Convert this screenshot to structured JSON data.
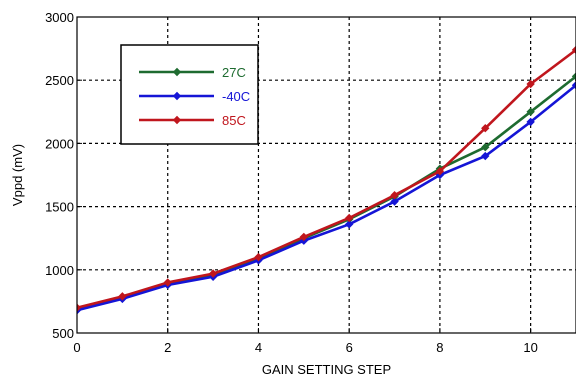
{
  "chart_data": {
    "type": "line",
    "title": "",
    "xlabel": "GAIN SETTING STEP",
    "ylabel": "Vppd (mV)",
    "xlim": [
      0,
      11
    ],
    "ylim": [
      500,
      3000
    ],
    "x_ticks": [
      0,
      2,
      4,
      6,
      8,
      10
    ],
    "y_ticks": [
      500,
      1000,
      1500,
      2000,
      2500,
      3000
    ],
    "grid": true,
    "legend_position": "top-left",
    "x": [
      0,
      1,
      2,
      3,
      4,
      5,
      6,
      7,
      8,
      9,
      10,
      11
    ],
    "series": [
      {
        "name": "27C",
        "color": "#1e6b30",
        "values": [
          690,
          780,
          890,
          960,
          1090,
          1250,
          1400,
          1580,
          1800,
          1970,
          2250,
          2530
        ]
      },
      {
        "name": "-40C",
        "color": "#1515d6",
        "values": [
          680,
          770,
          880,
          945,
          1075,
          1230,
          1360,
          1540,
          1750,
          1900,
          2170,
          2460
        ]
      },
      {
        "name": "85C",
        "color": "#c0161d",
        "values": [
          700,
          790,
          900,
          970,
          1100,
          1260,
          1410,
          1590,
          1780,
          2120,
          2470,
          2740
        ]
      }
    ]
  }
}
